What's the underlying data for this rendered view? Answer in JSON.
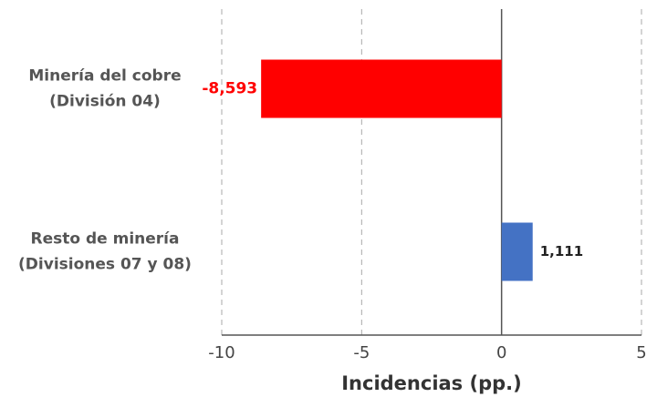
{
  "chart_data": {
    "type": "barh",
    "categories": [
      [
        "Minería del cobre",
        "(División 04)"
      ],
      [
        "Resto de minería",
        "(Divisiones 07 y 08)"
      ]
    ],
    "values": [
      -8.593,
      1.111
    ],
    "value_labels": [
      "-8,593",
      "1,111"
    ],
    "colors": [
      "#ff0000",
      "#4472c4"
    ],
    "value_label_colors": [
      "#ff0000",
      "#222222"
    ],
    "xlim": [
      -10,
      5
    ],
    "xticks": [
      -10,
      -5,
      0,
      5
    ],
    "xlabel": "Incidencias (pp.)",
    "grid": true
  }
}
